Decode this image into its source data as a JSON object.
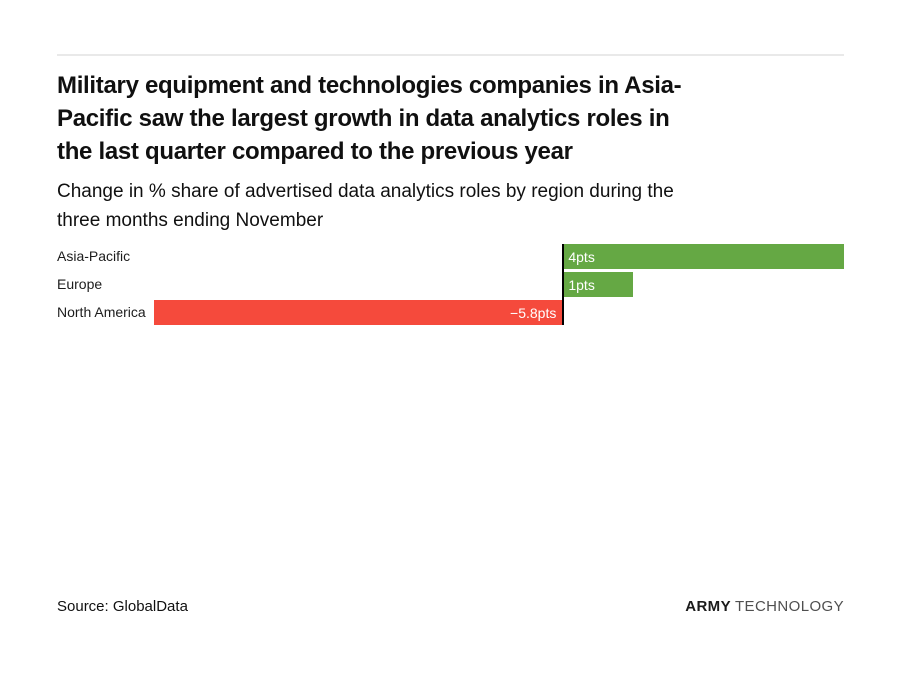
{
  "header": {
    "title_lines": [
      "Military equipment and technologies companies in Asia-",
      "Pacific saw the largest growth in data analytics roles in",
      "the last quarter compared to the previous year"
    ],
    "subtitle_lines": [
      "Change in % share of advertised data analytics roles by region during the",
      "three months ending November"
    ]
  },
  "chart_data": {
    "type": "bar",
    "orientation": "horizontal",
    "title": "Change in % share of advertised data analytics roles by region during the three months ending November",
    "categories": [
      "Asia-Pacific",
      "Europe",
      "North America"
    ],
    "values": [
      4,
      1,
      -5.8
    ],
    "value_labels": [
      "4pts",
      "1pts",
      "−5.8pts"
    ],
    "unit": "pts",
    "xlim": [
      -5.8,
      4
    ],
    "grid": false,
    "legend": "none",
    "value_labels_inside_bars": true,
    "positive_color": "#65a844",
    "negative_color": "#f54a3c",
    "zero_line_color": "#000000"
  },
  "footer": {
    "source": "Source: GlobalData",
    "brand_bold": "ARMY",
    "brand_light": "TECHNOLOGY"
  }
}
